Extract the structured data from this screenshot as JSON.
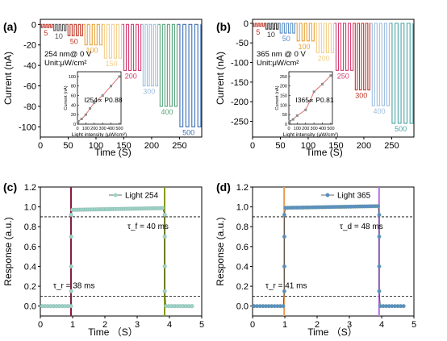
{
  "colors": {
    "p5": "#c0392b",
    "p10": "#555555",
    "p50": "#c0392b",
    "p100": "#e8a23a",
    "p150": "#f3cf8a",
    "p200": "#d23c6e",
    "p300": "#9ebfe0",
    "p400": "#5aa37c",
    "p500": "#3a6fb5",
    "p_b5": "#c0392b",
    "p_b10": "#333333",
    "p_b50": "#5a8ec8",
    "p_b100": "#e8a23a",
    "p_b200": "#f3cf8a",
    "p_b250": "#d23c6e",
    "p_b300": "#c0392b",
    "p_b400": "#9ebfe0",
    "p_b500": "#4aa3a3",
    "fit": "#e07070",
    "inset_pts": "#8c8c8c",
    "light254": "#9fd3c7",
    "light365": "#5b8fc0",
    "bar_c_on": "#8b1a3a",
    "bar_c_off": "#8a9a1a",
    "bar_d_on": "#e89b55",
    "bar_d_off": "#b470e0"
  },
  "chart_data": [
    {
      "panel": "(a)",
      "type": "line",
      "xlabel": "Time (S)",
      "ylabel": "Current (nA)",
      "xlim": [
        0,
        290
      ],
      "ylim": [
        -110,
        5
      ],
      "xticks": [
        "0",
        "50",
        "100",
        "150",
        "200",
        "250"
      ],
      "yticks": [
        "0",
        "-20",
        "-40",
        "-60",
        "-80",
        "-100"
      ],
      "annotations": [
        "254 nm@ 0 V",
        "Unit:μW/cm²"
      ],
      "levels": [
        {
          "label": "5",
          "start": 0,
          "end": 22,
          "current": -3,
          "color_key": "p5"
        },
        {
          "label": "10",
          "start": 22,
          "end": 47,
          "current": -6,
          "color_key": "p10"
        },
        {
          "label": "50",
          "start": 47,
          "end": 77,
          "current": -11,
          "color_key": "p50"
        },
        {
          "label": "100",
          "start": 77,
          "end": 112,
          "current": -20,
          "color_key": "p100"
        },
        {
          "label": "150",
          "start": 112,
          "end": 147,
          "current": -33,
          "color_key": "p150"
        },
        {
          "label": "200",
          "start": 147,
          "end": 182,
          "current": -45,
          "color_key": "p200"
        },
        {
          "label": "300",
          "start": 182,
          "end": 212,
          "current": -60,
          "color_key": "p300"
        },
        {
          "label": "400",
          "start": 212,
          "end": 247,
          "current": -80,
          "color_key": "p400"
        },
        {
          "label": "500",
          "start": 247,
          "end": 290,
          "current": -100,
          "color_key": "p500"
        }
      ],
      "inset": {
        "xlabel": "Light intensity (μW/cm²)",
        "ylabel": "Current (nA)",
        "xticks": [
          "0",
          "100",
          "200",
          "300",
          "400",
          "500"
        ],
        "yticks": [
          "0",
          "20",
          "40",
          "60",
          "80",
          "100"
        ],
        "xlim": [
          0,
          520
        ],
        "ylim": [
          0,
          110
        ],
        "fit_label": "I254∝ P0.88",
        "points": [
          [
            5,
            3
          ],
          [
            10,
            6
          ],
          [
            50,
            11
          ],
          [
            100,
            20
          ],
          [
            150,
            33
          ],
          [
            200,
            45
          ],
          [
            300,
            60
          ],
          [
            400,
            80
          ],
          [
            500,
            100
          ]
        ]
      }
    },
    {
      "panel": "(b)",
      "type": "line",
      "xlabel": "Time (S)",
      "ylabel": "Current (nA)",
      "xlim": [
        0,
        290
      ],
      "ylim": [
        -290,
        10
      ],
      "xticks": [
        "0",
        "50",
        "100",
        "150",
        "200",
        "250"
      ],
      "yticks": [
        "0",
        "-50",
        "-100",
        "-150",
        "-200",
        "-250"
      ],
      "annotations": [
        "365 nm @ 0 V",
        "Unit:μW/cm²"
      ],
      "levels": [
        {
          "label": "5",
          "start": 0,
          "end": 22,
          "current": -8,
          "color_key": "p_b5"
        },
        {
          "label": "10",
          "start": 22,
          "end": 47,
          "current": -15,
          "color_key": "p_b10"
        },
        {
          "label": "50",
          "start": 47,
          "end": 77,
          "current": -25,
          "color_key": "p_b50"
        },
        {
          "label": "100",
          "start": 77,
          "end": 112,
          "current": -45,
          "color_key": "p_b100"
        },
        {
          "label": "200",
          "start": 112,
          "end": 147,
          "current": -75,
          "color_key": "p_b200"
        },
        {
          "label": "250",
          "start": 147,
          "end": 182,
          "current": -120,
          "color_key": "p_b250"
        },
        {
          "label": "300",
          "start": 182,
          "end": 212,
          "current": -170,
          "color_key": "p_b300"
        },
        {
          "label": "400",
          "start": 212,
          "end": 247,
          "current": -210,
          "color_key": "p_b400"
        },
        {
          "label": "500",
          "start": 247,
          "end": 290,
          "current": -255,
          "color_key": "p_b500"
        }
      ],
      "inset": {
        "xlabel": "Light intensity (μW/cm²)",
        "ylabel": "Current (nA)",
        "xticks": [
          "0",
          "100",
          "200",
          "300",
          "400",
          "500"
        ],
        "yticks": [
          "0",
          "50",
          "100",
          "150",
          "200",
          "250"
        ],
        "xlim": [
          0,
          520
        ],
        "ylim": [
          0,
          275
        ],
        "fit_label": "I365∝ P0.81",
        "points": [
          [
            5,
            8
          ],
          [
            10,
            15
          ],
          [
            50,
            25
          ],
          [
            100,
            45
          ],
          [
            200,
            75
          ],
          [
            250,
            120
          ],
          [
            300,
            170
          ],
          [
            400,
            210
          ],
          [
            500,
            255
          ]
        ]
      }
    },
    {
      "panel": "(c)",
      "type": "scatter",
      "xlabel": "Time （S）",
      "ylabel": "Response (a.u.)",
      "xlim": [
        0,
        5
      ],
      "ylim": [
        -0.1,
        1.2
      ],
      "xticks": [
        "0",
        "1",
        "2",
        "3",
        "4",
        "5"
      ],
      "yticks": [
        "0.0",
        "0.2",
        "0.4",
        "0.6",
        "0.8",
        "1.0",
        "1.2"
      ],
      "legend": "Light 254",
      "hlines": [
        0.1,
        0.9
      ],
      "on_time": 0.95,
      "off_time": 3.85,
      "annotations": [
        "τ_f = 40 ms",
        "τ_r = 38 ms"
      ],
      "on_level": 0.97,
      "off_level": 0.0
    },
    {
      "panel": "(d)",
      "type": "scatter",
      "xlabel": "Time （S）",
      "ylabel": "Response (a.u.)",
      "xlim": [
        0,
        5
      ],
      "ylim": [
        -0.1,
        1.2
      ],
      "xticks": [
        "0",
        "1",
        "2",
        "3",
        "4",
        "5"
      ],
      "yticks": [
        "0.0",
        "0.2",
        "0.4",
        "0.6",
        "0.8",
        "1.0",
        "1.2"
      ],
      "legend": "Light 365",
      "hlines": [
        0.1,
        0.9
      ],
      "on_time": 0.98,
      "off_time": 3.92,
      "annotations": [
        "τ_d = 48 ms",
        "τ_r = 41 ms"
      ],
      "on_level": 0.99,
      "off_level": 0.0
    }
  ]
}
